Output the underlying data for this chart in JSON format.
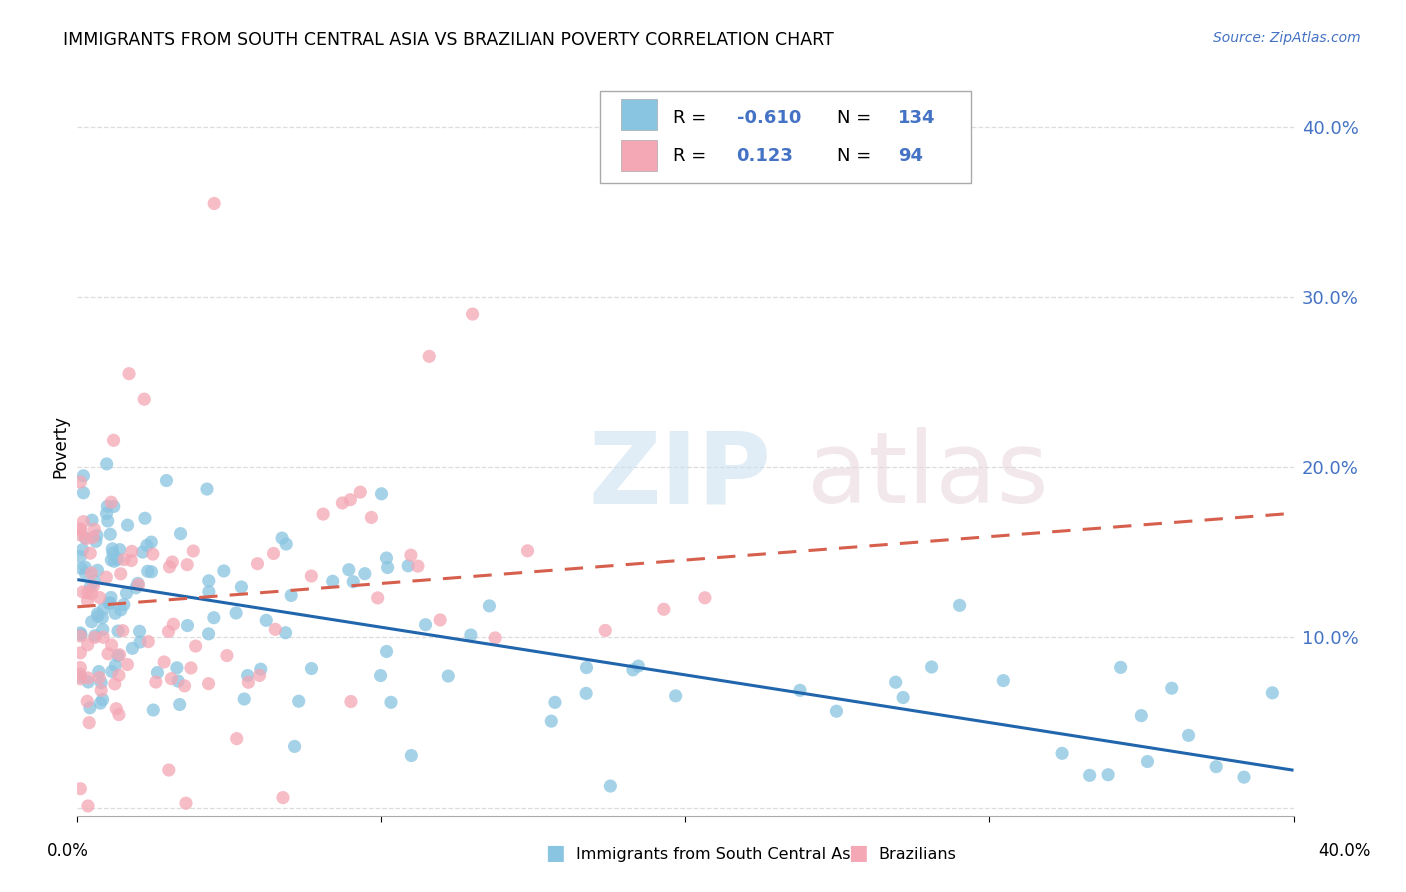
{
  "title": "IMMIGRANTS FROM SOUTH CENTRAL ASIA VS BRAZILIAN POVERTY CORRELATION CHART",
  "source": "Source: ZipAtlas.com",
  "ylabel": "Poverty",
  "y_tick_vals": [
    0.0,
    0.1,
    0.2,
    0.3,
    0.4
  ],
  "y_tick_labels": [
    "",
    "10.0%",
    "20.0%",
    "30.0%",
    "40.0%"
  ],
  "x_lim": [
    0.0,
    0.4
  ],
  "y_lim": [
    -0.005,
    0.43
  ],
  "legend1_label": "Immigrants from South Central Asia",
  "legend2_label": "Brazilians",
  "r1": "-0.610",
  "n1": "134",
  "r2": "0.123",
  "n2": "94",
  "color_blue": "#89c4e1",
  "color_blue_line": "#2166ac",
  "color_pink": "#f4a7b5",
  "color_pink_line": "#d6604d",
  "color_grid": "#dddddd",
  "color_tick_label": "#4472c4",
  "blue_line_x0": 0.0,
  "blue_line_y0": 0.134,
  "blue_line_x1": 0.4,
  "blue_line_y1": 0.022,
  "pink_line_x0": 0.0,
  "pink_line_y0": 0.118,
  "pink_line_x1": 0.4,
  "pink_line_y1": 0.173
}
